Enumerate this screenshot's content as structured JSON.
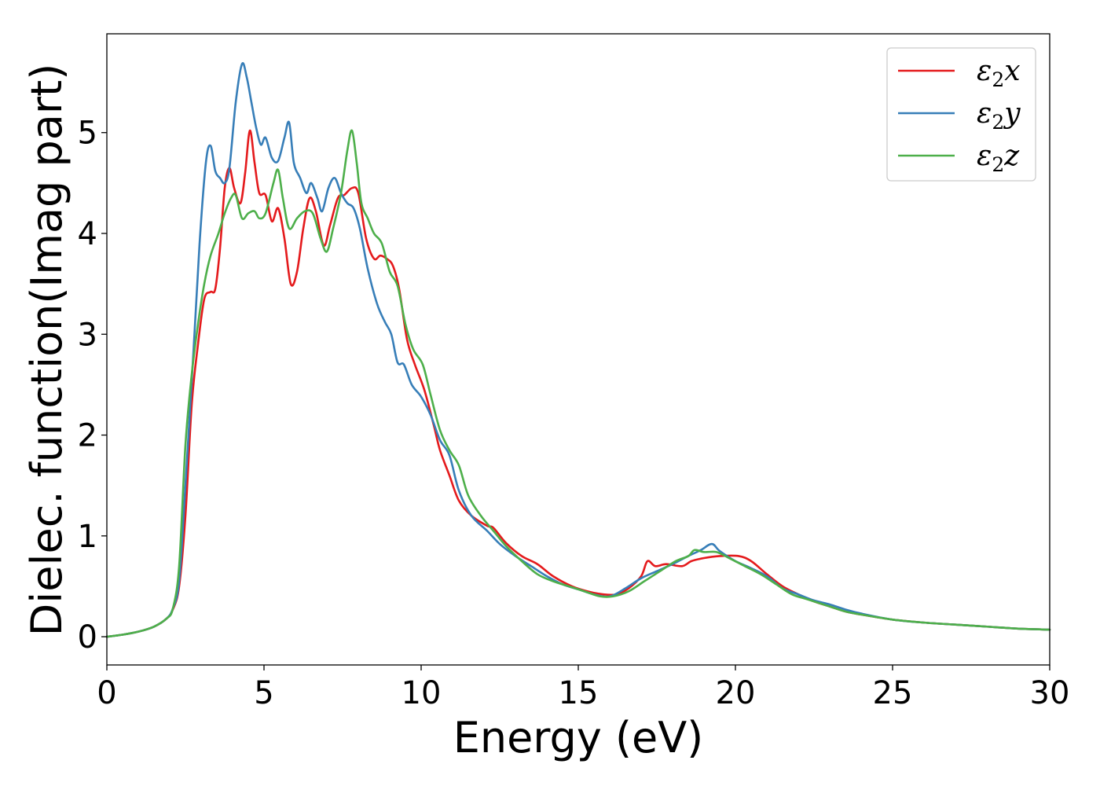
{
  "chart_data": {
    "type": "line",
    "title": "",
    "xlabel": "Energy (eV)",
    "ylabel": "Dielec. function(Imag part)",
    "xlim": [
      0,
      30
    ],
    "ylim": [
      -0.28,
      5.98
    ],
    "xticks": [
      0,
      5,
      10,
      15,
      20,
      25,
      30
    ],
    "yticks": [
      0,
      1,
      2,
      3,
      4,
      5
    ],
    "grid": false,
    "legend_position": "top-right",
    "series": [
      {
        "name": "ε₂x",
        "legend_base": "ε",
        "legend_sub": "2",
        "legend_suffix": "x",
        "color": "#e41a1c",
        "points": [
          [
            0,
            0
          ],
          [
            0.5,
            0.02
          ],
          [
            1,
            0.05
          ],
          [
            1.5,
            0.1
          ],
          [
            1.9,
            0.18
          ],
          [
            2.1,
            0.27
          ],
          [
            2.3,
            0.5
          ],
          [
            2.5,
            1.2
          ],
          [
            2.7,
            2.3
          ],
          [
            2.9,
            2.9
          ],
          [
            3.1,
            3.35
          ],
          [
            3.3,
            3.42
          ],
          [
            3.45,
            3.45
          ],
          [
            3.6,
            3.85
          ],
          [
            3.75,
            4.45
          ],
          [
            3.9,
            4.65
          ],
          [
            4.05,
            4.45
          ],
          [
            4.25,
            4.3
          ],
          [
            4.4,
            4.6
          ],
          [
            4.55,
            5.02
          ],
          [
            4.7,
            4.7
          ],
          [
            4.85,
            4.4
          ],
          [
            5.05,
            4.38
          ],
          [
            5.25,
            4.12
          ],
          [
            5.45,
            4.25
          ],
          [
            5.65,
            3.95
          ],
          [
            5.85,
            3.5
          ],
          [
            6.05,
            3.62
          ],
          [
            6.25,
            4.05
          ],
          [
            6.45,
            4.35
          ],
          [
            6.65,
            4.22
          ],
          [
            6.9,
            3.88
          ],
          [
            7.1,
            4.08
          ],
          [
            7.35,
            4.35
          ],
          [
            7.55,
            4.38
          ],
          [
            7.8,
            4.45
          ],
          [
            8.0,
            4.4
          ],
          [
            8.25,
            3.95
          ],
          [
            8.5,
            3.75
          ],
          [
            8.7,
            3.78
          ],
          [
            8.9,
            3.75
          ],
          [
            9.1,
            3.68
          ],
          [
            9.3,
            3.45
          ],
          [
            9.55,
            2.95
          ],
          [
            9.8,
            2.7
          ],
          [
            10.1,
            2.45
          ],
          [
            10.4,
            2.1
          ],
          [
            10.6,
            1.85
          ],
          [
            10.9,
            1.6
          ],
          [
            11.2,
            1.35
          ],
          [
            11.6,
            1.2
          ],
          [
            12.1,
            1.1
          ],
          [
            12.3,
            1.08
          ],
          [
            12.7,
            0.93
          ],
          [
            13.2,
            0.8
          ],
          [
            13.7,
            0.72
          ],
          [
            14.2,
            0.6
          ],
          [
            14.8,
            0.5
          ],
          [
            15.3,
            0.45
          ],
          [
            15.8,
            0.42
          ],
          [
            16.2,
            0.42
          ],
          [
            16.6,
            0.48
          ],
          [
            17.0,
            0.6
          ],
          [
            17.2,
            0.75
          ],
          [
            17.45,
            0.7
          ],
          [
            17.8,
            0.72
          ],
          [
            18.3,
            0.7
          ],
          [
            18.6,
            0.75
          ],
          [
            19.0,
            0.78
          ],
          [
            19.5,
            0.8
          ],
          [
            20.1,
            0.8
          ],
          [
            20.5,
            0.75
          ],
          [
            21.0,
            0.62
          ],
          [
            21.5,
            0.5
          ],
          [
            22.0,
            0.42
          ],
          [
            22.5,
            0.35
          ],
          [
            23.0,
            0.3
          ],
          [
            23.5,
            0.25
          ],
          [
            24.0,
            0.22
          ],
          [
            25.0,
            0.17
          ],
          [
            26.0,
            0.14
          ],
          [
            27.0,
            0.12
          ],
          [
            28.0,
            0.1
          ],
          [
            29.0,
            0.08
          ],
          [
            30.0,
            0.07
          ]
        ]
      },
      {
        "name": "ε₂y",
        "legend_base": "ε",
        "legend_sub": "2",
        "legend_suffix": "y",
        "color": "#377eb8",
        "points": [
          [
            0,
            0
          ],
          [
            0.5,
            0.02
          ],
          [
            1,
            0.05
          ],
          [
            1.5,
            0.1
          ],
          [
            1.9,
            0.18
          ],
          [
            2.1,
            0.28
          ],
          [
            2.3,
            0.55
          ],
          [
            2.5,
            1.5
          ],
          [
            2.75,
            2.8
          ],
          [
            2.95,
            3.9
          ],
          [
            3.15,
            4.7
          ],
          [
            3.3,
            4.87
          ],
          [
            3.45,
            4.62
          ],
          [
            3.6,
            4.55
          ],
          [
            3.75,
            4.5
          ],
          [
            3.9,
            4.65
          ],
          [
            4.1,
            5.3
          ],
          [
            4.3,
            5.68
          ],
          [
            4.45,
            5.55
          ],
          [
            4.6,
            5.3
          ],
          [
            4.75,
            5.05
          ],
          [
            4.9,
            4.88
          ],
          [
            5.05,
            4.95
          ],
          [
            5.25,
            4.75
          ],
          [
            5.45,
            4.72
          ],
          [
            5.65,
            4.95
          ],
          [
            5.8,
            5.1
          ],
          [
            5.95,
            4.7
          ],
          [
            6.15,
            4.55
          ],
          [
            6.35,
            4.4
          ],
          [
            6.5,
            4.5
          ],
          [
            6.7,
            4.35
          ],
          [
            6.85,
            4.22
          ],
          [
            7.05,
            4.45
          ],
          [
            7.25,
            4.55
          ],
          [
            7.45,
            4.4
          ],
          [
            7.65,
            4.3
          ],
          [
            7.85,
            4.25
          ],
          [
            8.05,
            4.05
          ],
          [
            8.3,
            3.65
          ],
          [
            8.6,
            3.3
          ],
          [
            8.85,
            3.12
          ],
          [
            9.05,
            3.0
          ],
          [
            9.25,
            2.72
          ],
          [
            9.45,
            2.7
          ],
          [
            9.7,
            2.5
          ],
          [
            10.0,
            2.38
          ],
          [
            10.3,
            2.2
          ],
          [
            10.6,
            1.95
          ],
          [
            10.9,
            1.8
          ],
          [
            11.2,
            1.45
          ],
          [
            11.6,
            1.2
          ],
          [
            12.1,
            1.05
          ],
          [
            12.5,
            0.92
          ],
          [
            13.0,
            0.8
          ],
          [
            13.5,
            0.7
          ],
          [
            14.0,
            0.6
          ],
          [
            14.5,
            0.52
          ],
          [
            15.0,
            0.47
          ],
          [
            15.5,
            0.42
          ],
          [
            16.0,
            0.4
          ],
          [
            16.5,
            0.48
          ],
          [
            17.0,
            0.58
          ],
          [
            17.5,
            0.65
          ],
          [
            18.0,
            0.72
          ],
          [
            18.5,
            0.8
          ],
          [
            18.9,
            0.86
          ],
          [
            19.25,
            0.92
          ],
          [
            19.5,
            0.85
          ],
          [
            20.0,
            0.75
          ],
          [
            20.5,
            0.68
          ],
          [
            21.0,
            0.6
          ],
          [
            21.5,
            0.48
          ],
          [
            22.0,
            0.42
          ],
          [
            22.5,
            0.36
          ],
          [
            23.0,
            0.32
          ],
          [
            23.5,
            0.27
          ],
          [
            24.0,
            0.23
          ],
          [
            25.0,
            0.17
          ],
          [
            26.0,
            0.14
          ],
          [
            27.0,
            0.12
          ],
          [
            28.0,
            0.1
          ],
          [
            29.0,
            0.08
          ],
          [
            30.0,
            0.07
          ]
        ]
      },
      {
        "name": "ε₂z",
        "legend_base": "ε",
        "legend_sub": "2",
        "legend_suffix": "z",
        "color": "#4daf4a",
        "points": [
          [
            0,
            0
          ],
          [
            0.5,
            0.02
          ],
          [
            1,
            0.05
          ],
          [
            1.5,
            0.1
          ],
          [
            1.9,
            0.18
          ],
          [
            2.1,
            0.28
          ],
          [
            2.3,
            0.7
          ],
          [
            2.5,
            1.9
          ],
          [
            2.7,
            2.6
          ],
          [
            2.9,
            3.1
          ],
          [
            3.1,
            3.5
          ],
          [
            3.3,
            3.78
          ],
          [
            3.55,
            4.0
          ],
          [
            3.75,
            4.2
          ],
          [
            3.95,
            4.35
          ],
          [
            4.1,
            4.38
          ],
          [
            4.3,
            4.15
          ],
          [
            4.5,
            4.2
          ],
          [
            4.7,
            4.22
          ],
          [
            4.85,
            4.15
          ],
          [
            5.05,
            4.2
          ],
          [
            5.3,
            4.5
          ],
          [
            5.45,
            4.63
          ],
          [
            5.6,
            4.35
          ],
          [
            5.8,
            4.05
          ],
          [
            6.05,
            4.15
          ],
          [
            6.3,
            4.22
          ],
          [
            6.55,
            4.2
          ],
          [
            6.8,
            3.95
          ],
          [
            7.0,
            3.82
          ],
          [
            7.2,
            4.05
          ],
          [
            7.45,
            4.4
          ],
          [
            7.65,
            4.82
          ],
          [
            7.8,
            5.02
          ],
          [
            7.95,
            4.7
          ],
          [
            8.1,
            4.3
          ],
          [
            8.3,
            4.15
          ],
          [
            8.5,
            4.0
          ],
          [
            8.75,
            3.9
          ],
          [
            9.0,
            3.62
          ],
          [
            9.25,
            3.48
          ],
          [
            9.5,
            3.1
          ],
          [
            9.75,
            2.85
          ],
          [
            10.05,
            2.7
          ],
          [
            10.3,
            2.4
          ],
          [
            10.6,
            2.05
          ],
          [
            10.9,
            1.85
          ],
          [
            11.2,
            1.7
          ],
          [
            11.5,
            1.4
          ],
          [
            11.9,
            1.2
          ],
          [
            12.3,
            1.05
          ],
          [
            12.7,
            0.9
          ],
          [
            13.2,
            0.75
          ],
          [
            13.7,
            0.62
          ],
          [
            14.2,
            0.55
          ],
          [
            14.7,
            0.5
          ],
          [
            15.2,
            0.45
          ],
          [
            15.7,
            0.4
          ],
          [
            16.1,
            0.4
          ],
          [
            16.6,
            0.45
          ],
          [
            17.1,
            0.55
          ],
          [
            17.6,
            0.65
          ],
          [
            18.1,
            0.75
          ],
          [
            18.5,
            0.8
          ],
          [
            18.7,
            0.86
          ],
          [
            19.0,
            0.84
          ],
          [
            19.4,
            0.84
          ],
          [
            19.8,
            0.78
          ],
          [
            20.3,
            0.7
          ],
          [
            20.8,
            0.62
          ],
          [
            21.3,
            0.52
          ],
          [
            21.8,
            0.42
          ],
          [
            22.3,
            0.37
          ],
          [
            23.0,
            0.3
          ],
          [
            23.5,
            0.25
          ],
          [
            24.0,
            0.22
          ],
          [
            25.0,
            0.17
          ],
          [
            26.0,
            0.14
          ],
          [
            27.0,
            0.12
          ],
          [
            28.0,
            0.1
          ],
          [
            29.0,
            0.08
          ],
          [
            30.0,
            0.07
          ]
        ]
      }
    ]
  }
}
